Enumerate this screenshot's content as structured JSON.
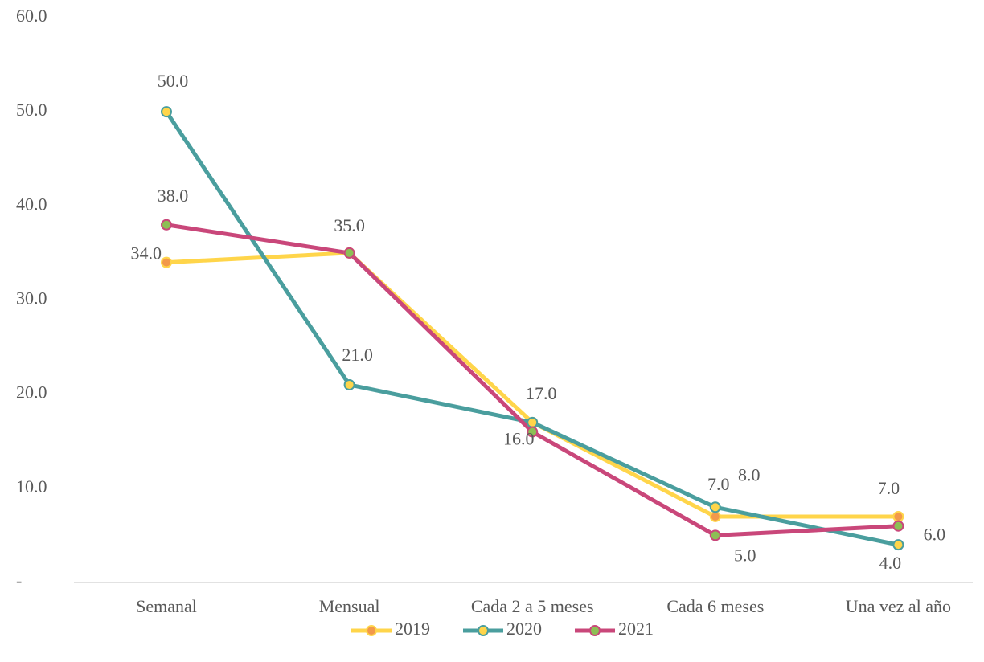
{
  "chart_data": {
    "type": "line",
    "categories": [
      "Semanal",
      "Mensual",
      "Cada 2 a 5 meses",
      "Cada 6 meses",
      "Una vez al año"
    ],
    "series": [
      {
        "name": "2019",
        "color": "#FFD54A",
        "marker_color": "#F2994A",
        "values": [
          34,
          35,
          17,
          7,
          7
        ],
        "value_labels": [
          "34.0",
          "35.0",
          "17.0",
          "7.0",
          "7.0"
        ]
      },
      {
        "name": "2020",
        "color": "#4A9E9E",
        "marker_color": "#FFD54A",
        "values": [
          50,
          21,
          17,
          8,
          4
        ],
        "value_labels": [
          "50.0",
          "21.0",
          "17.0",
          "8.0",
          "4.0"
        ]
      },
      {
        "name": "2021",
        "color": "#C9477A",
        "marker_color": "#8DBF55",
        "values": [
          38,
          35,
          16,
          5,
          6
        ],
        "value_labels": [
          "38.0",
          "35.0",
          "16.0",
          "5.0",
          "6.0"
        ]
      }
    ],
    "ylim": [
      0,
      60
    ],
    "yticks": [
      {
        "value": 0,
        "label": "-"
      },
      {
        "value": 10,
        "label": "10.0"
      },
      {
        "value": 20,
        "label": "20.0"
      },
      {
        "value": 30,
        "label": "30.0"
      },
      {
        "value": 40,
        "label": "40.0"
      },
      {
        "value": 50,
        "label": "50.0"
      },
      {
        "value": 60,
        "label": "60.0"
      }
    ],
    "grid": false,
    "legend": "bottom"
  }
}
